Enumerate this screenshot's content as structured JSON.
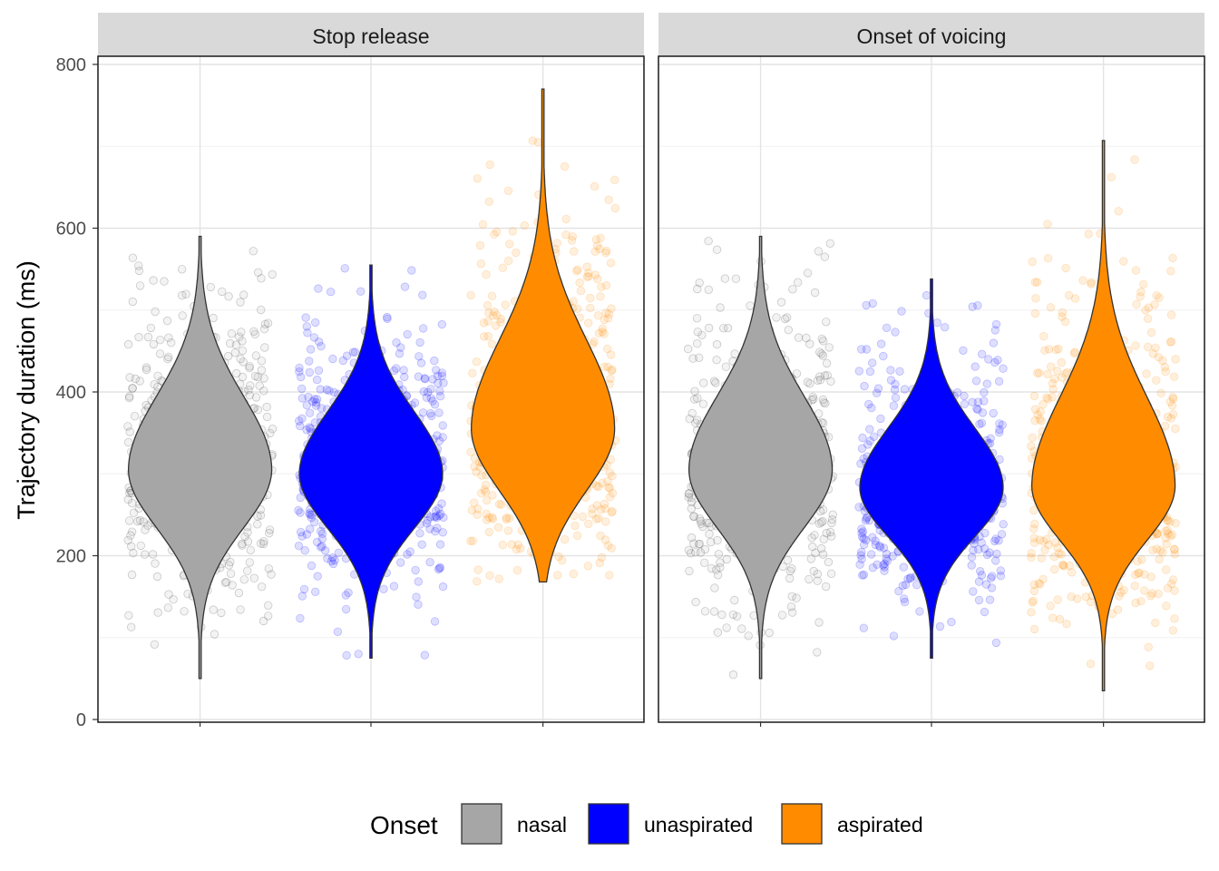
{
  "chart_data": {
    "type": "violin",
    "ylabel": "Trajectory duration (ms)",
    "xlabel": "",
    "ylim": [
      0,
      800
    ],
    "yticks": [
      0,
      200,
      400,
      600,
      800
    ],
    "grid": true,
    "legend": {
      "title": "Onset",
      "position": "bottom",
      "entries": [
        {
          "label": "nasal",
          "color": "#a6a6a6"
        },
        {
          "label": "unaspirated",
          "color": "#0000ff"
        },
        {
          "label": "aspirated",
          "color": "#ff8c00"
        }
      ]
    },
    "categories": [
      "nasal",
      "unaspirated",
      "aspirated"
    ],
    "panels": [
      {
        "title": "Stop release",
        "series": [
          {
            "name": "nasal",
            "min": 50,
            "max": 590,
            "mode": 305,
            "q_low": 230,
            "q_high": 400,
            "jitter_range": [
              50,
              590
            ]
          },
          {
            "name": "unaspirated",
            "min": 75,
            "max": 555,
            "mode": 300,
            "q_low": 230,
            "q_high": 380,
            "jitter_range": [
              75,
              555
            ]
          },
          {
            "name": "aspirated",
            "min": 168,
            "max": 770,
            "mode": 355,
            "q_low": 275,
            "q_high": 470,
            "jitter_range": [
              168,
              770
            ]
          }
        ]
      },
      {
        "title": "Onset of voicing",
        "series": [
          {
            "name": "nasal",
            "min": 50,
            "max": 590,
            "mode": 305,
            "q_low": 230,
            "q_high": 400,
            "jitter_range": [
              50,
              590
            ]
          },
          {
            "name": "unaspirated",
            "min": 75,
            "max": 538,
            "mode": 283,
            "q_low": 220,
            "q_high": 360,
            "jitter_range": [
              75,
              538
            ]
          },
          {
            "name": "aspirated",
            "min": 35,
            "max": 707,
            "mode": 285,
            "q_low": 215,
            "q_high": 400,
            "jitter_range": [
              35,
              707
            ]
          }
        ]
      }
    ]
  }
}
